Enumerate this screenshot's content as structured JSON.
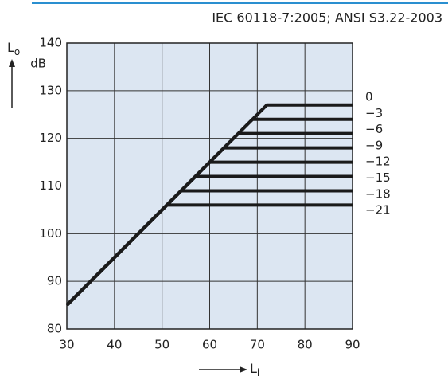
{
  "chart_data": {
    "type": "line",
    "standard": "IEC 60118-7:2005; ANSI S3.22-2003",
    "y_label": {
      "main": "L",
      "sub": "o"
    },
    "y_unit": "dB",
    "x_label": {
      "main": "L",
      "sub": "i"
    },
    "xlim": [
      30,
      90
    ],
    "xticks": [
      30,
      40,
      50,
      60,
      70,
      80,
      90
    ],
    "ylim": [
      80,
      140
    ],
    "yticks": [
      80,
      90,
      100,
      110,
      120,
      130,
      140
    ],
    "grid": true,
    "background": "#dce6f2",
    "series": [
      {
        "name": "0",
        "color": "#1a1a1a",
        "x": [
          30,
          72,
          90
        ],
        "values": [
          85,
          127,
          127
        ]
      },
      {
        "name": "−3",
        "color": "#1a1a1a",
        "x": [
          30,
          69,
          90
        ],
        "values": [
          85,
          124,
          124
        ]
      },
      {
        "name": "−6",
        "color": "#1a1a1a",
        "x": [
          30,
          66,
          90
        ],
        "values": [
          85,
          121,
          121
        ]
      },
      {
        "name": "−9",
        "color": "#1a1a1a",
        "x": [
          30,
          63,
          90
        ],
        "values": [
          85,
          118,
          118
        ]
      },
      {
        "name": "−12",
        "color": "#1a1a1a",
        "x": [
          30,
          60,
          90
        ],
        "values": [
          85,
          115,
          115
        ]
      },
      {
        "name": "−15",
        "color": "#1a1a1a",
        "x": [
          30,
          57,
          90
        ],
        "values": [
          85,
          112,
          112
        ]
      },
      {
        "name": "−18",
        "color": "#1a1a1a",
        "x": [
          30,
          54,
          90
        ],
        "values": [
          85,
          109,
          109
        ]
      },
      {
        "name": "−21",
        "color": "#1a1a1a",
        "x": [
          30,
          51,
          90
        ],
        "values": [
          85,
          106,
          106
        ]
      }
    ]
  }
}
